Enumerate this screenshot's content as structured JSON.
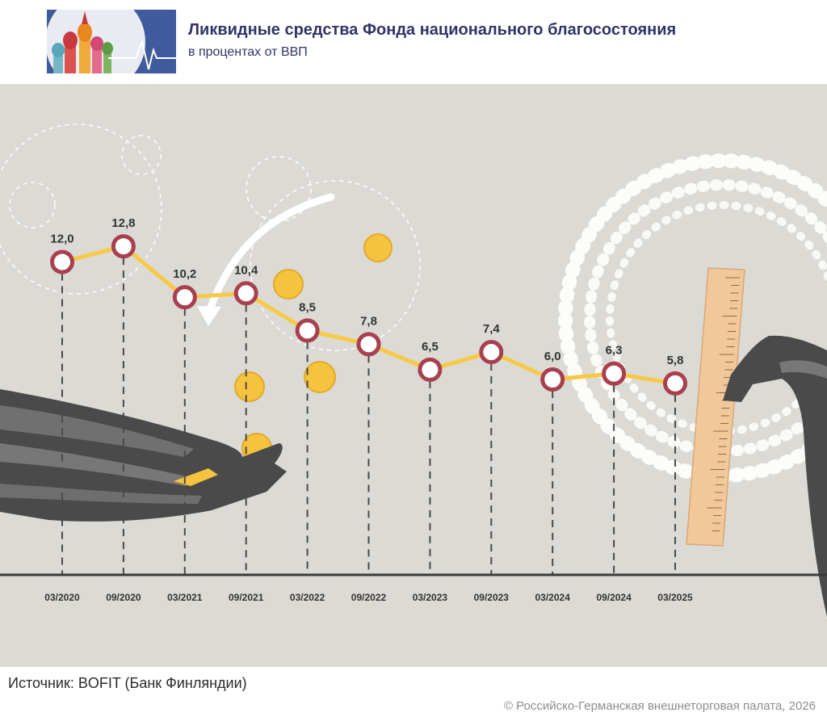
{
  "header": {
    "title": "Ликвидные средства Фонда национального благосостояния",
    "subtitle": "в процентах от ВВП"
  },
  "colors": {
    "line": "#f7c944",
    "marker_stroke": "#a8404f",
    "marker_fill": "#ffffff",
    "baseline": "#3a3a3a",
    "background": "#dcdad5",
    "title": "#2f3567",
    "coin": "#f5c33e",
    "ruler": "#f2c89a"
  },
  "chart_data": {
    "type": "line",
    "categories": [
      "03/2020",
      "09/2020",
      "03/2021",
      "09/2021",
      "03/2022",
      "09/2022",
      "03/2023",
      "09/2023",
      "03/2024",
      "09/2024",
      "03/2025"
    ],
    "values": [
      12.0,
      12.8,
      10.2,
      10.4,
      8.5,
      7.8,
      6.5,
      7.4,
      6.0,
      6.3,
      5.8
    ],
    "value_labels": [
      "12,0",
      "12,8",
      "10,2",
      "10,4",
      "8,5",
      "7,8",
      "6,5",
      "7,4",
      "6,0",
      "6,3",
      "5,8"
    ],
    "ylim": [
      0,
      12.8
    ],
    "grid": false,
    "legend": "none"
  },
  "footer": {
    "source": "Источник: BOFIT (Банк Финляндии)",
    "copyright": "© Российско-Германская внешнеторговая палата, 2026"
  }
}
